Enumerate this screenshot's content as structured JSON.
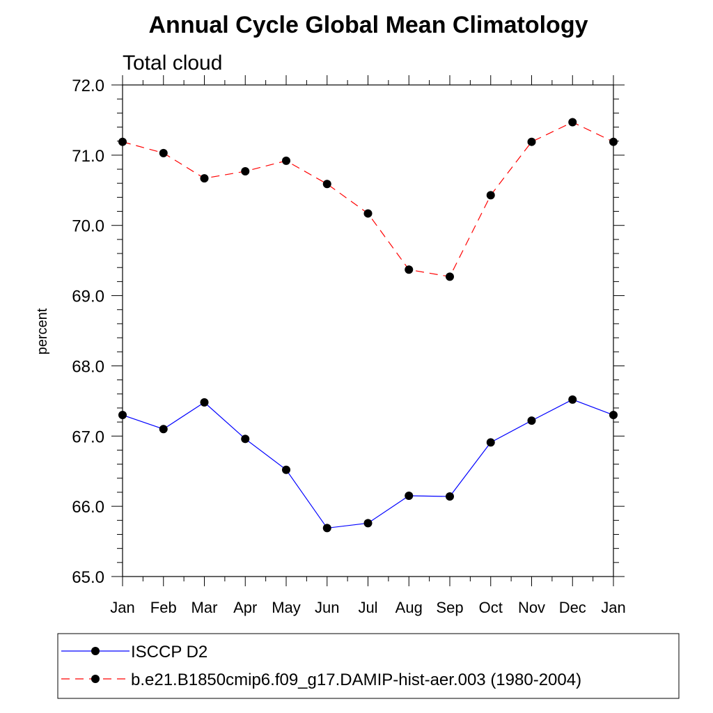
{
  "chart_data": {
    "type": "line",
    "title": "Annual Cycle Global Mean Climatology",
    "subtitle": "Total cloud",
    "ylabel": "percent",
    "xlabel": "",
    "categories": [
      "Jan",
      "Feb",
      "Mar",
      "Apr",
      "May",
      "Jun",
      "Jul",
      "Aug",
      "Sep",
      "Oct",
      "Nov",
      "Dec",
      "Jan"
    ],
    "ylim": [
      65.0,
      72.0
    ],
    "yticks": [
      "65.0",
      "66.0",
      "67.0",
      "68.0",
      "69.0",
      "70.0",
      "71.0",
      "72.0"
    ],
    "grid": false,
    "legend_position": "bottom",
    "series": [
      {
        "name": "ISCCP D2",
        "values": [
          67.3,
          67.1,
          67.48,
          66.96,
          66.52,
          65.69,
          65.76,
          66.15,
          66.14,
          66.91,
          67.22,
          67.52,
          67.3
        ],
        "color": "#0000ff",
        "dash": "solid",
        "marker": "filled-circle"
      },
      {
        "name": "b.e21.B1850cmip6.f09_g17.DAMIP-hist-aer.003 (1980-2004)",
        "values": [
          71.19,
          71.03,
          70.67,
          70.77,
          70.92,
          70.59,
          70.17,
          69.37,
          69.27,
          70.43,
          71.19,
          71.47,
          71.19
        ],
        "color": "#ff0000",
        "dash": "dashed",
        "marker": "filled-circle"
      }
    ]
  }
}
